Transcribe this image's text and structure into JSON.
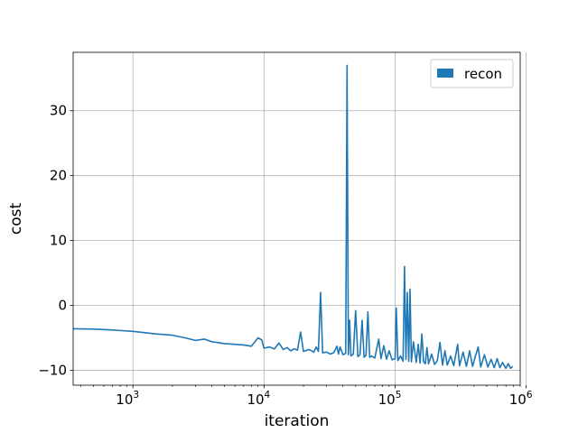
{
  "chart_data": {
    "type": "line",
    "title": "",
    "xlabel": "iteration",
    "ylabel": "cost",
    "xscale": "log",
    "xlim": [
      350,
      900000
    ],
    "ylim": [
      -12.3,
      39
    ],
    "grid": true,
    "legend": {
      "placement": "top-right"
    },
    "xticks": [
      {
        "value": 1000,
        "base": "10",
        "exp": "3"
      },
      {
        "value": 10000,
        "base": "10",
        "exp": "4"
      },
      {
        "value": 100000,
        "base": "10",
        "exp": "5"
      },
      {
        "value": 1000000,
        "base": "10",
        "exp": "6"
      }
    ],
    "yticks": [
      {
        "value": 30,
        "label": "30"
      },
      {
        "value": 20,
        "label": "20"
      },
      {
        "value": 10,
        "label": "10"
      },
      {
        "value": 0,
        "label": "0"
      },
      {
        "value": -10,
        "label": "−10"
      }
    ],
    "series": [
      {
        "name": "recon",
        "color": "#1f77b4",
        "points": [
          [
            350,
            -3.6
          ],
          [
            500,
            -3.65
          ],
          [
            700,
            -3.8
          ],
          [
            1000,
            -4.0
          ],
          [
            1500,
            -4.4
          ],
          [
            2000,
            -4.6
          ],
          [
            2500,
            -5.0
          ],
          [
            3000,
            -5.4
          ],
          [
            3500,
            -5.2
          ],
          [
            4000,
            -5.6
          ],
          [
            5000,
            -5.9
          ],
          [
            6000,
            -6.0
          ],
          [
            7000,
            -6.1
          ],
          [
            8000,
            -6.3
          ],
          [
            9000,
            -5.0
          ],
          [
            9600,
            -5.3
          ],
          [
            10000,
            -6.6
          ],
          [
            11000,
            -6.4
          ],
          [
            12000,
            -6.7
          ],
          [
            13000,
            -5.8
          ],
          [
            14000,
            -6.8
          ],
          [
            15000,
            -6.5
          ],
          [
            16000,
            -7.0
          ],
          [
            17000,
            -6.7
          ],
          [
            18000,
            -6.9
          ],
          [
            19000,
            -4.1
          ],
          [
            20000,
            -7.1
          ],
          [
            22000,
            -6.8
          ],
          [
            24000,
            -7.2
          ],
          [
            25000,
            -6.4
          ],
          [
            26000,
            -7.1
          ],
          [
            27000,
            2.0
          ],
          [
            28000,
            -7.3
          ],
          [
            30000,
            -7.2
          ],
          [
            32000,
            -7.5
          ],
          [
            34000,
            -7.3
          ],
          [
            36000,
            -6.3
          ],
          [
            37000,
            -7.5
          ],
          [
            38000,
            -6.4
          ],
          [
            40000,
            -7.6
          ],
          [
            42000,
            -7.4
          ],
          [
            43000,
            37.0
          ],
          [
            44000,
            -7.6
          ],
          [
            45000,
            -2.3
          ],
          [
            46000,
            -7.8
          ],
          [
            48000,
            -7.5
          ],
          [
            50000,
            -0.8
          ],
          [
            52000,
            -7.9
          ],
          [
            54000,
            -7.6
          ],
          [
            56000,
            -2.3
          ],
          [
            58000,
            -8.0
          ],
          [
            60000,
            -7.7
          ],
          [
            62000,
            -1.0
          ],
          [
            64000,
            -8.0
          ],
          [
            66000,
            -7.8
          ],
          [
            70000,
            -8.1
          ],
          [
            75000,
            -5.2
          ],
          [
            78000,
            -8.2
          ],
          [
            82000,
            -6.2
          ],
          [
            86000,
            -8.3
          ],
          [
            90000,
            -7.0
          ],
          [
            95000,
            -8.4
          ],
          [
            100000,
            -8.2
          ],
          [
            102000,
            -0.4
          ],
          [
            105000,
            -8.5
          ],
          [
            110000,
            -7.8
          ],
          [
            115000,
            -8.6
          ],
          [
            118000,
            6.0
          ],
          [
            121000,
            -8.3
          ],
          [
            124000,
            2.0
          ],
          [
            127000,
            -8.6
          ],
          [
            130000,
            2.5
          ],
          [
            133000,
            -8.7
          ],
          [
            138000,
            -5.6
          ],
          [
            145000,
            -8.8
          ],
          [
            150000,
            -6.0
          ],
          [
            155000,
            -8.9
          ],
          [
            160000,
            -4.4
          ],
          [
            165000,
            -8.7
          ],
          [
            170000,
            -9.0
          ],
          [
            175000,
            -6.5
          ],
          [
            180000,
            -9.0
          ],
          [
            190000,
            -7.5
          ],
          [
            200000,
            -9.1
          ],
          [
            210000,
            -8.5
          ],
          [
            220000,
            -5.7
          ],
          [
            230000,
            -9.2
          ],
          [
            240000,
            -7.0
          ],
          [
            250000,
            -9.2
          ],
          [
            265000,
            -7.8
          ],
          [
            280000,
            -9.3
          ],
          [
            300000,
            -6.0
          ],
          [
            310000,
            -9.3
          ],
          [
            330000,
            -7.2
          ],
          [
            350000,
            -9.4
          ],
          [
            370000,
            -7.0
          ],
          [
            390000,
            -9.4
          ],
          [
            410000,
            -7.8
          ],
          [
            430000,
            -6.4
          ],
          [
            450000,
            -9.5
          ],
          [
            480000,
            -7.6
          ],
          [
            510000,
            -9.5
          ],
          [
            540000,
            -8.3
          ],
          [
            570000,
            -9.6
          ],
          [
            600000,
            -8.2
          ],
          [
            630000,
            -9.6
          ],
          [
            660000,
            -8.8
          ],
          [
            700000,
            -9.7
          ],
          [
            730000,
            -9.0
          ],
          [
            760000,
            -9.7
          ],
          [
            790000,
            -9.4
          ]
        ]
      }
    ]
  }
}
